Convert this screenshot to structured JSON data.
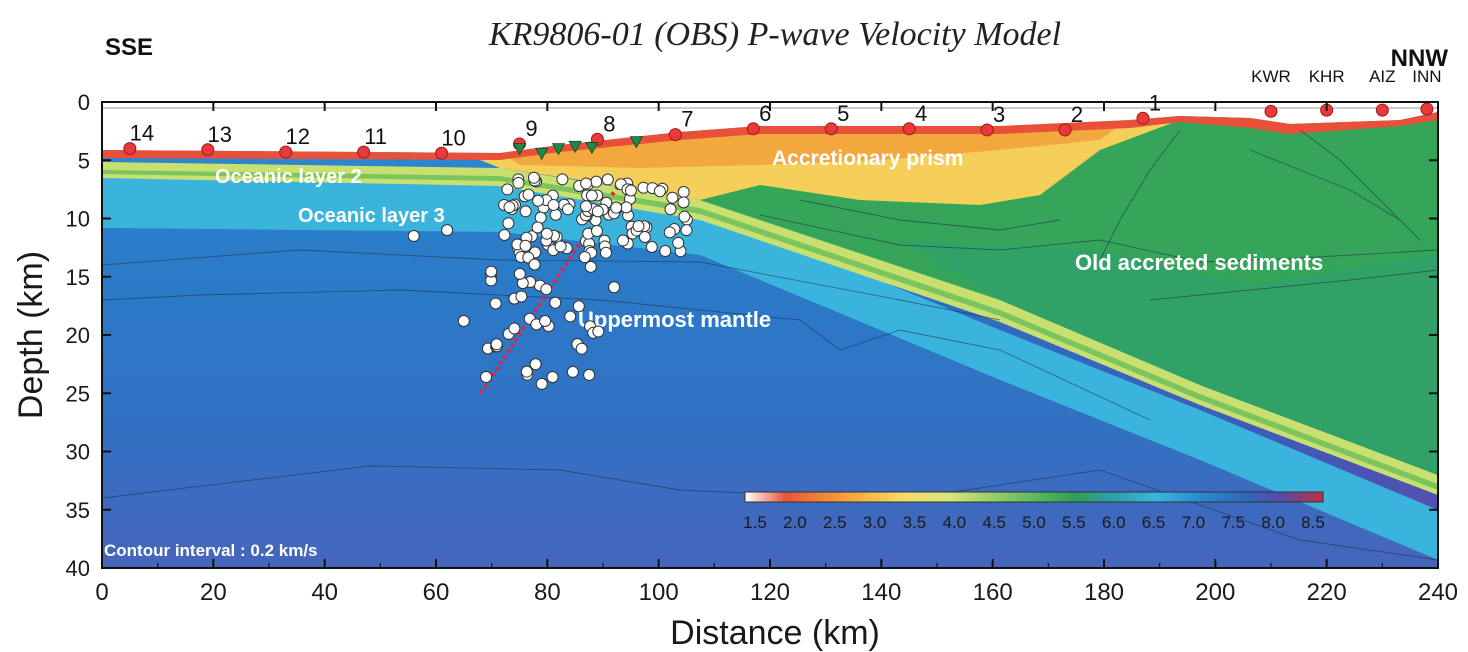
{
  "figure": {
    "title": "KR9806-01 (OBS)  P-wave Velocity Model",
    "left_direction": "SSE",
    "right_direction": "NNW",
    "xlabel": "Distance (km)",
    "ylabel": "Depth (km)",
    "x_ticks": [
      "0",
      "20",
      "40",
      "60",
      "80",
      "100",
      "120",
      "140",
      "160",
      "180",
      "200",
      "220",
      "240"
    ],
    "y_ticks": [
      "0",
      "5",
      "10",
      "15",
      "20",
      "25",
      "30",
      "35",
      "40"
    ],
    "xlim": [
      0,
      240
    ],
    "ylim": [
      40,
      0
    ],
    "contour_note": "Contour interval : 0.2 km/s",
    "colorbar": {
      "labels": [
        "1.5",
        "2.0",
        "2.5",
        "3.0",
        "3.5",
        "4.0",
        "4.5",
        "5.0",
        "5.5",
        "6.0",
        "6.5",
        "7.0",
        "7.5",
        "8.0",
        "8.5"
      ],
      "colors": [
        "#ffffff",
        "#e8553a",
        "#f08a35",
        "#f6b64a",
        "#f4de6c",
        "#d9e77a",
        "#9fd16a",
        "#5dba5e",
        "#2e9e57",
        "#2f9fae",
        "#38b6dc",
        "#2a8fd0",
        "#2a6cbc",
        "#5a4aa8",
        "#7a3aa0"
      ]
    },
    "labels": {
      "accretionary_prism": "Accretionary prism",
      "oceanic_layer_2": "Oceanic layer 2",
      "oceanic_layer_3": "Oceanic layer 3",
      "old_accreted": "Old accreted sediments",
      "uppermost_mantle": "Uppermost mantle"
    },
    "obs_stations": [
      {
        "label": "14",
        "x": 5,
        "depth": 4.0
      },
      {
        "label": "13",
        "x": 19,
        "depth": 4.1
      },
      {
        "label": "12",
        "x": 33,
        "depth": 4.3
      },
      {
        "label": "11",
        "x": 47,
        "depth": 4.3
      },
      {
        "label": "10",
        "x": 61,
        "depth": 4.4
      },
      {
        "label": "9",
        "x": 75,
        "depth": 3.6
      },
      {
        "label": "8",
        "x": 89,
        "depth": 3.2
      },
      {
        "label": "7",
        "x": 103,
        "depth": 2.8
      },
      {
        "label": "6",
        "x": 117,
        "depth": 2.3
      },
      {
        "label": "5",
        "x": 131,
        "depth": 2.3
      },
      {
        "label": "4",
        "x": 145,
        "depth": 2.3
      },
      {
        "label": "3",
        "x": 159,
        "depth": 2.4
      },
      {
        "label": "2",
        "x": 173,
        "depth": 2.4
      },
      {
        "label": "1",
        "x": 187,
        "depth": 1.4
      }
    ],
    "land_stations": [
      {
        "label": "KWR",
        "x": 210,
        "depth": 0.8
      },
      {
        "label": "KHR",
        "x": 220,
        "depth": 0.7
      },
      {
        "label": "AIZ",
        "x": 230,
        "depth": 0.7
      },
      {
        "label": "INN",
        "x": 238,
        "depth": 0.6
      }
    ],
    "shot_markers": [
      {
        "x": 75,
        "depth": 4.0
      },
      {
        "x": 79,
        "depth": 4.4
      },
      {
        "x": 82,
        "depth": 4.0
      },
      {
        "x": 85,
        "depth": 3.8
      },
      {
        "x": 88,
        "depth": 3.9
      },
      {
        "x": 96,
        "depth": 3.4
      }
    ],
    "colors": {
      "station_red": "#e83a3a",
      "shot_green": "#1e8a4a",
      "hypocenter_line": "#e8203a"
    }
  }
}
